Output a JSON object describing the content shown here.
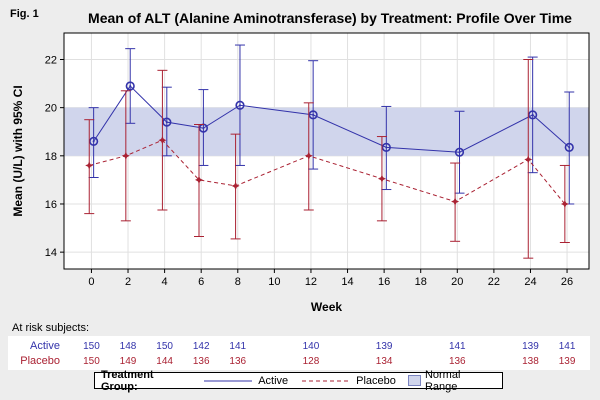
{
  "fig_label": "Fig. 1",
  "chart_data": {
    "type": "line",
    "title": "Mean of ALT (Alanine Aminotransferase) by Treatment:  Profile Over Time",
    "xlabel": "Week",
    "ylabel": "Mean (U/L) with 95% CI",
    "xlim": [
      -1.5,
      27.2
    ],
    "ylim": [
      13.3,
      23.1
    ],
    "x_ticks": [
      "0",
      "2",
      "4",
      "6",
      "8",
      "10",
      "12",
      "14",
      "16",
      "18",
      "20",
      "22",
      "24",
      "26"
    ],
    "y_ticks": [
      "14",
      "16",
      "18",
      "20",
      "22"
    ],
    "grid": true,
    "normal_range": [
      18,
      20
    ],
    "series": [
      {
        "name": "Active",
        "color": "#3333aa",
        "line_style": "solid",
        "marker": "circle",
        "x": [
          0,
          2,
          4,
          6,
          8,
          12,
          16,
          20,
          24,
          26
        ],
        "mean": [
          18.6,
          20.9,
          19.4,
          19.15,
          20.1,
          19.7,
          18.35,
          18.15,
          19.7,
          18.35
        ],
        "lower": [
          17.1,
          19.35,
          18.0,
          17.6,
          17.6,
          17.45,
          16.6,
          16.45,
          17.3,
          16.0
        ],
        "upper": [
          20.0,
          22.45,
          20.85,
          20.75,
          22.6,
          21.95,
          20.05,
          19.85,
          22.1,
          20.65
        ]
      },
      {
        "name": "Placebo",
        "color": "#aa2233",
        "line_style": "dashed",
        "marker": "star",
        "x": [
          0,
          2,
          4,
          6,
          8,
          12,
          16,
          20,
          24,
          26
        ],
        "mean": [
          17.6,
          18.0,
          18.65,
          17.0,
          16.75,
          18.0,
          17.05,
          16.1,
          17.85,
          16.0
        ],
        "lower": [
          15.6,
          15.3,
          15.75,
          14.65,
          14.55,
          15.75,
          15.3,
          14.45,
          13.75,
          14.4
        ],
        "upper": [
          19.5,
          20.7,
          21.55,
          19.3,
          18.9,
          20.2,
          18.8,
          17.7,
          22.0,
          17.6
        ]
      }
    ],
    "risk_table": {
      "title": "At risk subjects:",
      "weeks": [
        0,
        2,
        4,
        6,
        8,
        12,
        16,
        20,
        24,
        26
      ],
      "rows": [
        {
          "label": "Active",
          "color": "#3333aa",
          "values": [
            "150",
            "148",
            "150",
            "142",
            "141",
            "140",
            "139",
            "141",
            "139",
            "141"
          ]
        },
        {
          "label": "Placebo",
          "color": "#aa2233",
          "values": [
            "150",
            "149",
            "144",
            "136",
            "136",
            "128",
            "134",
            "136",
            "138",
            "139"
          ]
        }
      ]
    },
    "legend": {
      "title": "Treatment Group:",
      "items": [
        {
          "label": "Active"
        },
        {
          "label": "Placebo"
        },
        {
          "label": "Normal Range"
        }
      ]
    }
  }
}
